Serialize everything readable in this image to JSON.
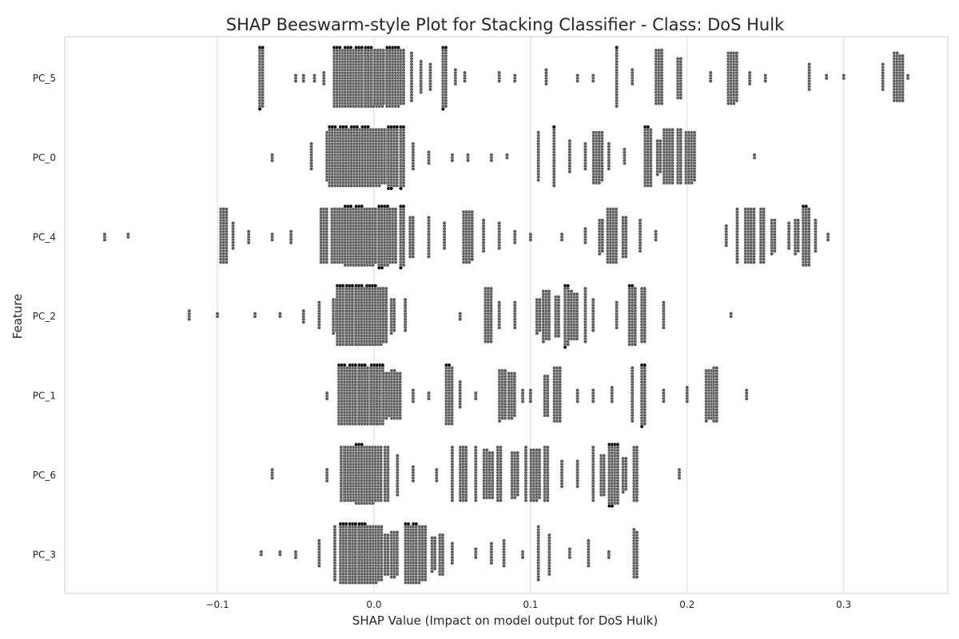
{
  "chart_data": {
    "type": "scatter",
    "subtype": "beeswarm",
    "title": "SHAP Beeswarm-style Plot for Stacking Classifier - Class: DoS Hulk",
    "xlabel": "SHAP Value (Impact on model output for DoS Hulk)",
    "ylabel": "Feature",
    "xlim": [
      -0.1975,
      0.3665
    ],
    "x_ticks": [
      -0.1,
      0.0,
      0.1,
      0.2,
      0.3
    ],
    "x_tick_labels": [
      "−0.1",
      "0.0",
      "0.1",
      "0.2",
      "0.3"
    ],
    "grid": true,
    "grid_axis": "x",
    "point_color": "#595959",
    "point_edge_color": "#ffffff",
    "overflow_point_color": "#000000",
    "categories": [
      "PC_5",
      "PC_0",
      "PC_4",
      "PC_2",
      "PC_1",
      "PC_6",
      "PC_3"
    ],
    "series": [
      {
        "feature": "PC_5",
        "clusters": [
          [
            -0.072,
            45
          ],
          [
            -0.05,
            3
          ],
          [
            -0.045,
            3
          ],
          [
            -0.038,
            3
          ],
          [
            -0.032,
            5
          ],
          [
            -0.025,
            10
          ],
          [
            -0.02,
            150
          ],
          [
            -0.013,
            150
          ],
          [
            -0.006,
            150
          ],
          [
            0.0,
            150
          ],
          [
            0.006,
            140
          ],
          [
            0.012,
            110
          ],
          [
            0.018,
            40
          ],
          [
            0.024,
            18
          ],
          [
            0.03,
            12
          ],
          [
            0.036,
            10
          ],
          [
            0.045,
            45
          ],
          [
            0.052,
            6
          ],
          [
            0.058,
            4
          ],
          [
            0.08,
            4
          ],
          [
            0.09,
            3
          ],
          [
            0.11,
            6
          ],
          [
            0.13,
            3
          ],
          [
            0.14,
            3
          ],
          [
            0.155,
            22
          ],
          [
            0.165,
            6
          ],
          [
            0.182,
            60
          ],
          [
            0.195,
            30
          ],
          [
            0.215,
            4
          ],
          [
            0.229,
            75
          ],
          [
            0.24,
            5
          ],
          [
            0.25,
            3
          ],
          [
            0.278,
            10
          ],
          [
            0.289,
            2
          ],
          [
            0.3,
            2
          ],
          [
            0.325,
            10
          ],
          [
            0.335,
            70
          ],
          [
            0.341,
            2
          ]
        ]
      },
      {
        "feature": "PC_0",
        "clusters": [
          [
            -0.065,
            3
          ],
          [
            -0.04,
            10
          ],
          [
            -0.03,
            18
          ],
          [
            -0.023,
            150
          ],
          [
            -0.016,
            150
          ],
          [
            -0.009,
            150
          ],
          [
            -0.002,
            150
          ],
          [
            0.005,
            140
          ],
          [
            0.012,
            90
          ],
          [
            0.018,
            45
          ],
          [
            0.025,
            10
          ],
          [
            0.035,
            5
          ],
          [
            0.05,
            3
          ],
          [
            0.06,
            3
          ],
          [
            0.075,
            3
          ],
          [
            0.085,
            2
          ],
          [
            0.105,
            18
          ],
          [
            0.115,
            22
          ],
          [
            0.125,
            12
          ],
          [
            0.135,
            10
          ],
          [
            0.143,
            75
          ],
          [
            0.15,
            10
          ],
          [
            0.16,
            6
          ],
          [
            0.175,
            65
          ],
          [
            0.182,
            25
          ],
          [
            0.188,
            80
          ],
          [
            0.195,
            40
          ],
          [
            0.202,
            75
          ],
          [
            0.243,
            2
          ]
        ]
      },
      {
        "feature": "PC_4",
        "clusters": [
          [
            -0.172,
            3
          ],
          [
            -0.157,
            2
          ],
          [
            -0.096,
            60
          ],
          [
            -0.09,
            10
          ],
          [
            -0.08,
            5
          ],
          [
            -0.065,
            3
          ],
          [
            -0.053,
            5
          ],
          [
            -0.032,
            60
          ],
          [
            -0.025,
            60
          ],
          [
            -0.02,
            60
          ],
          [
            -0.013,
            150
          ],
          [
            -0.006,
            150
          ],
          [
            0.0,
            120
          ],
          [
            0.006,
            90
          ],
          [
            0.012,
            60
          ],
          [
            0.018,
            45
          ],
          [
            0.024,
            30
          ],
          [
            0.035,
            15
          ],
          [
            0.045,
            10
          ],
          [
            0.06,
            75
          ],
          [
            0.07,
            12
          ],
          [
            0.08,
            10
          ],
          [
            0.09,
            5
          ],
          [
            0.1,
            3
          ],
          [
            0.12,
            3
          ],
          [
            0.135,
            6
          ],
          [
            0.145,
            25
          ],
          [
            0.152,
            80
          ],
          [
            0.16,
            30
          ],
          [
            0.17,
            12
          ],
          [
            0.18,
            4
          ],
          [
            0.225,
            8
          ],
          [
            0.232,
            20
          ],
          [
            0.24,
            80
          ],
          [
            0.248,
            40
          ],
          [
            0.255,
            25
          ],
          [
            0.265,
            10
          ],
          [
            0.27,
            25
          ],
          [
            0.276,
            65
          ],
          [
            0.282,
            12
          ],
          [
            0.29,
            3
          ]
        ]
      },
      {
        "feature": "PC_2",
        "clusters": [
          [
            -0.118,
            4
          ],
          [
            -0.1,
            2
          ],
          [
            -0.076,
            2
          ],
          [
            -0.06,
            2
          ],
          [
            -0.045,
            5
          ],
          [
            -0.035,
            10
          ],
          [
            -0.025,
            25
          ],
          [
            -0.018,
            150
          ],
          [
            -0.012,
            150
          ],
          [
            -0.006,
            150
          ],
          [
            0.0,
            130
          ],
          [
            0.006,
            60
          ],
          [
            0.012,
            25
          ],
          [
            0.02,
            12
          ],
          [
            0.055,
            3
          ],
          [
            0.073,
            60
          ],
          [
            0.08,
            10
          ],
          [
            0.09,
            10
          ],
          [
            0.105,
            25
          ],
          [
            0.11,
            55
          ],
          [
            0.117,
            30
          ],
          [
            0.123,
            45
          ],
          [
            0.127,
            70
          ],
          [
            0.135,
            20
          ],
          [
            0.14,
            12
          ],
          [
            0.155,
            10
          ],
          [
            0.165,
            65
          ],
          [
            0.172,
            40
          ],
          [
            0.185,
            10
          ],
          [
            0.228,
            2
          ]
        ]
      },
      {
        "feature": "PC_1",
        "clusters": [
          [
            -0.03,
            3
          ],
          [
            -0.02,
            8
          ],
          [
            -0.017,
            150
          ],
          [
            -0.01,
            150
          ],
          [
            -0.004,
            150
          ],
          [
            0.002,
            110
          ],
          [
            0.008,
            50
          ],
          [
            0.014,
            70
          ],
          [
            0.025,
            5
          ],
          [
            0.035,
            3
          ],
          [
            0.048,
            65
          ],
          [
            0.055,
            10
          ],
          [
            0.065,
            3
          ],
          [
            0.082,
            55
          ],
          [
            0.088,
            50
          ],
          [
            0.095,
            5
          ],
          [
            0.1,
            5
          ],
          [
            0.11,
            30
          ],
          [
            0.117,
            60
          ],
          [
            0.13,
            5
          ],
          [
            0.14,
            5
          ],
          [
            0.152,
            6
          ],
          [
            0.165,
            20
          ],
          [
            0.172,
            45
          ],
          [
            0.185,
            5
          ],
          [
            0.2,
            6
          ],
          [
            0.214,
            55
          ],
          [
            0.218,
            40
          ],
          [
            0.238,
            4
          ]
        ]
      },
      {
        "feature": "PC_6",
        "clusters": [
          [
            -0.065,
            4
          ],
          [
            -0.03,
            5
          ],
          [
            -0.02,
            40
          ],
          [
            -0.013,
            140
          ],
          [
            -0.006,
            150
          ],
          [
            0.0,
            120
          ],
          [
            0.008,
            40
          ],
          [
            0.015,
            15
          ],
          [
            0.025,
            6
          ],
          [
            0.04,
            5
          ],
          [
            0.05,
            20
          ],
          [
            0.057,
            60
          ],
          [
            0.065,
            20
          ],
          [
            0.073,
            70
          ],
          [
            0.08,
            40
          ],
          [
            0.09,
            50
          ],
          [
            0.097,
            20
          ],
          [
            0.103,
            75
          ],
          [
            0.11,
            40
          ],
          [
            0.12,
            10
          ],
          [
            0.13,
            10
          ],
          [
            0.14,
            20
          ],
          [
            0.146,
            30
          ],
          [
            0.153,
            90
          ],
          [
            0.16,
            25
          ],
          [
            0.167,
            40
          ],
          [
            0.195,
            4
          ]
        ]
      },
      {
        "feature": "PC_3",
        "clusters": [
          [
            -0.072,
            2
          ],
          [
            -0.06,
            2
          ],
          [
            -0.05,
            3
          ],
          [
            -0.035,
            10
          ],
          [
            -0.025,
            20
          ],
          [
            -0.016,
            150
          ],
          [
            -0.01,
            150
          ],
          [
            -0.004,
            150
          ],
          [
            0.003,
            60
          ],
          [
            0.008,
            30
          ],
          [
            0.013,
            50
          ],
          [
            0.022,
            65
          ],
          [
            0.027,
            65
          ],
          [
            0.031,
            60
          ],
          [
            0.038,
            25
          ],
          [
            0.043,
            30
          ],
          [
            0.05,
            8
          ],
          [
            0.065,
            4
          ],
          [
            0.075,
            8
          ],
          [
            0.083,
            10
          ],
          [
            0.095,
            3
          ],
          [
            0.105,
            20
          ],
          [
            0.112,
            15
          ],
          [
            0.125,
            4
          ],
          [
            0.137,
            10
          ],
          [
            0.15,
            3
          ],
          [
            0.167,
            35
          ]
        ]
      }
    ]
  }
}
